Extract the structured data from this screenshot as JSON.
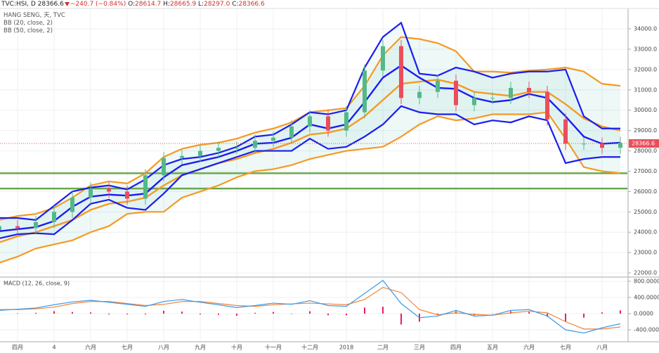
{
  "header": {
    "symbol": "TVC:HSI, D",
    "last": 28366.6,
    "change": "−240.7",
    "change_pct": "(−0.84%)",
    "open_label": "O:",
    "open": 28614.7,
    "high_label": "H:",
    "high": 28665.9,
    "low_label": "L:",
    "low": "28297.0",
    "close_label": "C:",
    "close": 28366.6
  },
  "chart_data": [
    {
      "type": "candlestick",
      "name": "HANG SENG, 天, TVC",
      "categories": [
        null,
        "四月",
        null,
        "4",
        null,
        "六月",
        null,
        "七月",
        null,
        "八月",
        null,
        "九月",
        null,
        "十月",
        null,
        "十一月",
        null,
        "十二月",
        null,
        "2018",
        null,
        "二月",
        null,
        "三月",
        null,
        "四月",
        null,
        "五月",
        null,
        "六月",
        null,
        "七月",
        null,
        "八月",
        null
      ],
      "open": [
        24100,
        24300,
        24200,
        24500,
        25000,
        25700,
        26150,
        26000,
        25650,
        26800,
        27650,
        27750,
        28000,
        28150,
        28150,
        28500,
        28650,
        29200,
        29700,
        29000,
        29900,
        31950,
        33150,
        30600,
        30900,
        31450,
        30250,
        30600,
        30600,
        31100,
        30900,
        29550,
        28350,
        28350,
        28150
      ],
      "high": [
        24600,
        24600,
        24800,
        25300,
        26000,
        26450,
        26450,
        26300,
        27100,
        27950,
        28050,
        28300,
        28450,
        28450,
        28800,
        28950,
        29500,
        30000,
        30000,
        30200,
        32250,
        33450,
        33450,
        31200,
        31750,
        31750,
        30900,
        30900,
        31400,
        31400,
        31200,
        29850,
        28650,
        28650,
        28700
      ],
      "low": [
        23800,
        23900,
        23900,
        24200,
        24700,
        25400,
        25700,
        25350,
        25350,
        26500,
        27350,
        27450,
        27700,
        27850,
        27850,
        28200,
        28350,
        28900,
        28700,
        28700,
        29600,
        31650,
        30300,
        30300,
        30600,
        29950,
        29950,
        30300,
        30300,
        30600,
        29250,
        28050,
        28050,
        27850,
        27850
      ],
      "close": [
        24300,
        24200,
        24500,
        25000,
        25700,
        26150,
        26000,
        25650,
        26800,
        27650,
        27750,
        28000,
        28150,
        28150,
        28500,
        28650,
        29200,
        29700,
        29000,
        29900,
        31950,
        33150,
        30600,
        30900,
        31450,
        30250,
        30600,
        30600,
        31100,
        30900,
        29550,
        28350,
        28350,
        28150,
        28400
      ],
      "up_color": "#53b987",
      "down_color": "#eb4d5c",
      "indicators": [
        {
          "name": "BB (50, close, 2)",
          "color": "#f59a23",
          "upper": [
            24600,
            24800,
            24900,
            25200,
            25700,
            26300,
            26500,
            26400,
            26900,
            27700,
            28100,
            28300,
            28400,
            28600,
            28900,
            29100,
            29400,
            29900,
            30000,
            30100,
            31200,
            32700,
            33600,
            33500,
            33300,
            32900,
            31900,
            31900,
            31850,
            31950,
            32000,
            32100,
            31900,
            31300,
            31200
          ],
          "basis": [
            23500,
            23800,
            24000,
            24300,
            24600,
            25100,
            25400,
            25500,
            25700,
            26300,
            26800,
            27100,
            27400,
            27600,
            27900,
            28100,
            28400,
            28800,
            28900,
            29100,
            29700,
            30500,
            31300,
            31400,
            31500,
            31300,
            30900,
            30800,
            30700,
            30900,
            30900,
            30300,
            29600,
            29200,
            29000
          ],
          "lower": [
            22500,
            22800,
            23200,
            23400,
            23600,
            24000,
            24300,
            24900,
            25000,
            25000,
            25700,
            26000,
            26300,
            26700,
            27000,
            27100,
            27300,
            27600,
            27800,
            28000,
            28100,
            28200,
            28700,
            29300,
            29700,
            29500,
            29600,
            29800,
            29800,
            29800,
            29900,
            28600,
            27200,
            27000,
            26900
          ]
        },
        {
          "name": "BB (20, close, 2)",
          "color": "#1c1cf0",
          "upper": [
            24700,
            24700,
            24600,
            25300,
            26000,
            26200,
            26300,
            26100,
            26600,
            27300,
            27600,
            27700,
            27900,
            28200,
            28700,
            28800,
            29300,
            29900,
            29800,
            30000,
            32100,
            33600,
            34300,
            31800,
            31700,
            32100,
            31900,
            31600,
            31800,
            31900,
            31900,
            32000,
            29700,
            29100,
            29100
          ],
          "basis": [
            24050,
            24150,
            24250,
            24550,
            25250,
            25750,
            25850,
            25800,
            25900,
            26700,
            27300,
            27500,
            27700,
            28000,
            28350,
            28400,
            28650,
            29300,
            29100,
            29300,
            30400,
            31600,
            32200,
            31600,
            31100,
            31050,
            30600,
            30400,
            30500,
            30800,
            30600,
            29700,
            28700,
            28350,
            28400
          ],
          "lower": [
            23700,
            23900,
            23950,
            23900,
            24600,
            25400,
            25600,
            25200,
            25100,
            25900,
            26800,
            27100,
            27400,
            27700,
            28000,
            28000,
            28000,
            28600,
            28100,
            28200,
            28700,
            29300,
            30200,
            29900,
            29800,
            29800,
            29300,
            29500,
            29400,
            29700,
            29500,
            27400,
            27600,
            27700,
            27700
          ]
        }
      ],
      "hlines": [
        26900,
        26150
      ],
      "hline_color": "#6aa84f",
      "last_price": 28366.6,
      "ylim": [
        21830,
        34970
      ],
      "yticks": [
        {
          "value": 22000,
          "label": "22000.0"
        },
        {
          "value": 23000,
          "label": "23000.0"
        },
        {
          "value": 24000,
          "label": "24000.0"
        },
        {
          "value": 25000,
          "label": "25000.0"
        },
        {
          "value": 26000,
          "label": "26000.0"
        },
        {
          "value": 27000,
          "label": "27000.0"
        },
        {
          "value": 28000,
          "label": "28000.0"
        },
        {
          "value": 29000,
          "label": "29000.0"
        },
        {
          "value": 30000,
          "label": "30000.0"
        },
        {
          "value": 31000,
          "label": "31000.0"
        },
        {
          "value": 32000,
          "label": "32000.0"
        },
        {
          "value": 33000,
          "label": "33000.0"
        },
        {
          "value": 34000,
          "label": "34000.0"
        }
      ],
      "grid": true
    },
    {
      "type": "macd",
      "title": "MACD (12, 26, close, 9)",
      "macd": [
        80,
        110,
        140,
        220,
        290,
        330,
        280,
        230,
        180,
        300,
        350,
        280,
        220,
        150,
        200,
        260,
        230,
        320,
        200,
        180,
        500,
        820,
        250,
        -100,
        -60,
        80,
        -60,
        -40,
        80,
        100,
        -60,
        -400,
        -480,
        -350,
        -250
      ],
      "signal": [
        100,
        100,
        120,
        160,
        250,
        300,
        300,
        250,
        200,
        230,
        300,
        300,
        250,
        200,
        180,
        220,
        240,
        260,
        240,
        220,
        350,
        650,
        520,
        100,
        -30,
        20,
        -20,
        -40,
        20,
        60,
        20,
        -200,
        -380,
        -380,
        -330
      ],
      "histogram": [
        -20,
        10,
        20,
        60,
        40,
        30,
        -20,
        -20,
        -20,
        70,
        50,
        -20,
        -30,
        -50,
        20,
        40,
        -10,
        60,
        -40,
        -40,
        150,
        170,
        -270,
        -200,
        -30,
        60,
        -40,
        0,
        60,
        40,
        -80,
        -200,
        -100,
        30,
        80
      ],
      "macd_color": "#3d9be9",
      "signal_color": "#f0843a",
      "histogram_color": "#e91e63",
      "ylim": [
        -678,
        887
      ],
      "yticks": [
        {
          "value": 800,
          "label": "800.0000"
        },
        {
          "value": 400,
          "label": "400.0000"
        },
        {
          "value": 0,
          "label": "0.0000"
        },
        {
          "value": -400,
          "label": "-400.0000"
        }
      ],
      "grid": true
    }
  ]
}
